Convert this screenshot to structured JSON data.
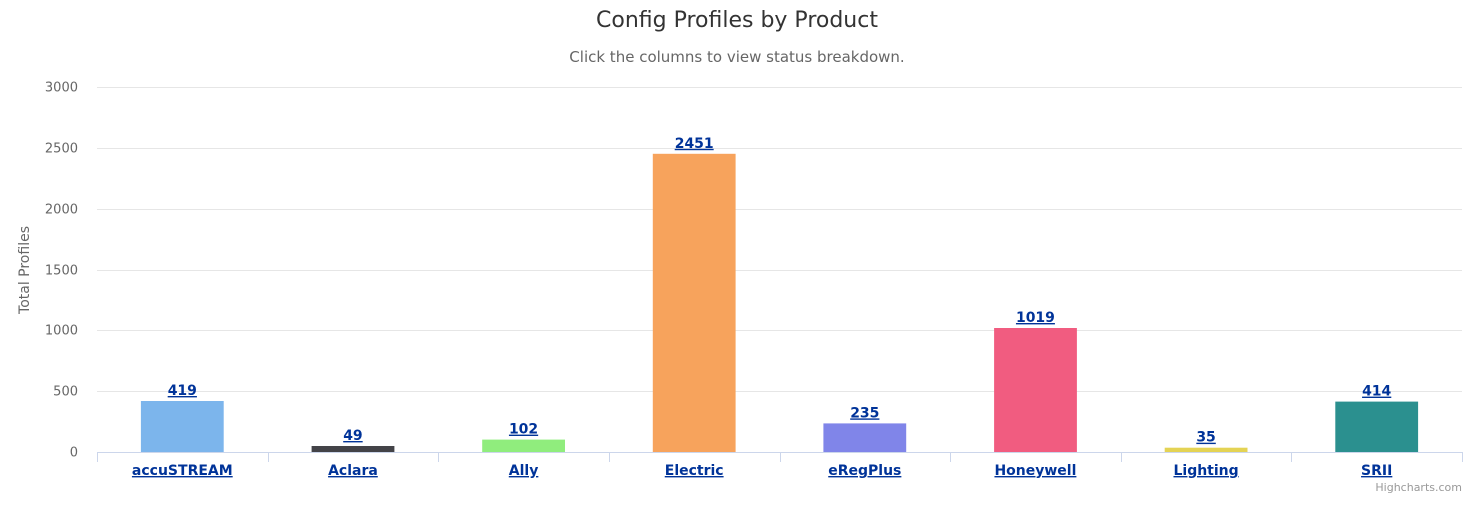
{
  "chart_data": {
    "type": "bar",
    "title": "Config Profiles by Product",
    "subtitle": "Click the columns to view status breakdown.",
    "ylabel": "Total Profiles",
    "xlabel": "",
    "ylim": [
      0,
      3000
    ],
    "yticks": [
      0,
      500,
      1000,
      1500,
      2000,
      2500,
      3000
    ],
    "grid": true,
    "categories": [
      "accuSTREAM",
      "Aclara",
      "Ally",
      "Electric",
      "eRegPlus",
      "Honeywell",
      "Lighting",
      "SRII"
    ],
    "values": [
      419,
      49,
      102,
      2451,
      235,
      1019,
      35,
      414
    ],
    "colors": [
      "#7cb5ec",
      "#434348",
      "#90ed7d",
      "#f7a35c",
      "#8085e9",
      "#f15c80",
      "#e4d354",
      "#2b908f"
    ]
  },
  "credits": "Highcharts.com"
}
